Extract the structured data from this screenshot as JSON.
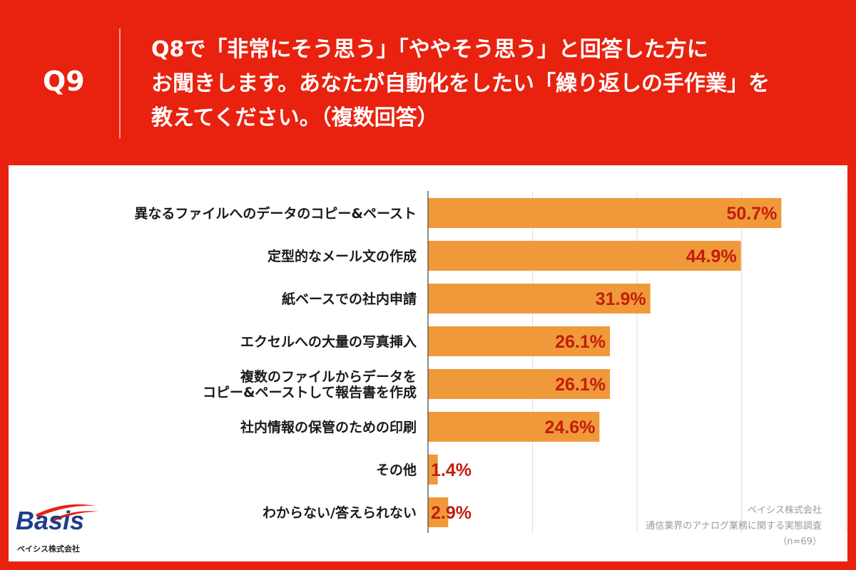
{
  "header": {
    "q_label": "Q9",
    "question_lines": [
      "Q8で「非常にそう思う」「ややそう思う」と回答した方に",
      "お聞きします。あなたが自動化をしたい「繰り返しの手作業」を",
      "教えてください。（複数回答）"
    ]
  },
  "colors": {
    "background": "#e8220f",
    "bar": "#f0993a",
    "value_text": "#c21d0c",
    "panel": "#ffffff"
  },
  "chart_data": {
    "type": "bar",
    "orientation": "horizontal",
    "categories": [
      [
        "異なるファイルへのデータのコピー&ペースト"
      ],
      [
        "定型的なメール文の作成"
      ],
      [
        "紙ベースでの社内申請"
      ],
      [
        "エクセルへの大量の写真挿入"
      ],
      [
        "複数のファイルからデータを",
        "コピー&ペーストして報告書を作成"
      ],
      [
        "社内情報の保管のための印刷"
      ],
      [
        "その他"
      ],
      [
        "わからない/答えられない"
      ]
    ],
    "values": [
      50.7,
      44.9,
      31.9,
      26.1,
      26.1,
      24.6,
      1.4,
      2.9
    ],
    "value_labels": [
      "50.7%",
      "44.9%",
      "31.9%",
      "26.1%",
      "26.1%",
      "24.6%",
      "1.4%",
      "2.9%"
    ],
    "xlim": [
      0,
      60
    ],
    "grid": true
  },
  "footer": {
    "source_lines": [
      "ベイシス株式会社",
      "通信業界のアナログ業務に関する実態調査",
      "（n=69）"
    ],
    "logo_text": "Basis",
    "logo_company": "ベイシス株式会社"
  }
}
